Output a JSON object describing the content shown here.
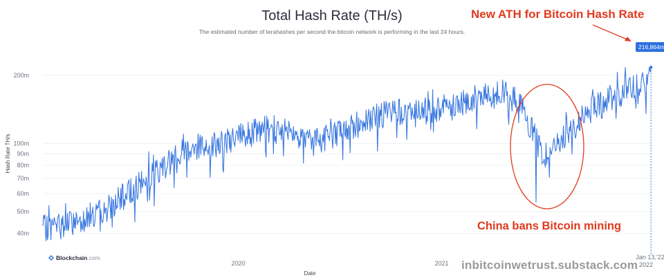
{
  "header": {
    "title": "Total Hash Rate (TH/s)",
    "subtitle": "The estimated number of terahashes per second the bitcoin network is performing in the last 24 hours."
  },
  "annotations": {
    "ath": "New ATH for Bitcoin Hash Rate",
    "china": "China bans Bitcoin mining",
    "last_value": "216,864m"
  },
  "watermark": "inbitcoinwetrust.substack.com",
  "brand": {
    "name": "Blockchain",
    "domain": ".com"
  },
  "colors": {
    "line": "#3a78e0",
    "annotation": "#e03a1e",
    "badge": "#2f6fe0"
  },
  "chart_data": {
    "type": "line",
    "title": "Total Hash Rate (TH/s)",
    "xlabel": "Date",
    "ylabel": "Hash Rate TH/s",
    "yscale": "log",
    "ylim_m": [
      33,
      245
    ],
    "xlim": [
      "2019-01-14",
      "2022-01-14"
    ],
    "y_ticks": [
      {
        "value": 40,
        "label": "40m"
      },
      {
        "value": 50,
        "label": "50m"
      },
      {
        "value": 60,
        "label": "60m"
      },
      {
        "value": 70,
        "label": "70m"
      },
      {
        "value": 80,
        "label": "80m"
      },
      {
        "value": 90,
        "label": "90m"
      },
      {
        "value": 100,
        "label": "100m"
      },
      {
        "value": 200,
        "label": "200m"
      }
    ],
    "x_ticks": [
      {
        "date": "2020-01-01",
        "label": "2020"
      },
      {
        "date": "2021-01-01",
        "label": "2021"
      },
      {
        "date": "2022-01-13",
        "label": "Jan 13, '22"
      }
    ],
    "last_point": {
      "date": "2022-01-13",
      "value": 216.864
    },
    "trend": [
      {
        "date": "2019-01-14",
        "value": 42
      },
      {
        "date": "2019-03-01",
        "value": 44
      },
      {
        "date": "2019-05-01",
        "value": 50
      },
      {
        "date": "2019-06-15",
        "value": 60
      },
      {
        "date": "2019-07-15",
        "value": 68
      },
      {
        "date": "2019-08-15",
        "value": 78
      },
      {
        "date": "2019-10-01",
        "value": 95
      },
      {
        "date": "2019-12-01",
        "value": 100
      },
      {
        "date": "2020-02-15",
        "value": 115
      },
      {
        "date": "2020-04-01",
        "value": 118
      },
      {
        "date": "2020-05-10",
        "value": 100
      },
      {
        "date": "2020-06-15",
        "value": 108
      },
      {
        "date": "2020-08-15",
        "value": 125
      },
      {
        "date": "2020-10-15",
        "value": 140
      },
      {
        "date": "2020-11-15",
        "value": 135
      },
      {
        "date": "2021-01-01",
        "value": 145
      },
      {
        "date": "2021-03-15",
        "value": 160
      },
      {
        "date": "2021-05-01",
        "value": 165
      },
      {
        "date": "2021-05-20",
        "value": 150
      },
      {
        "date": "2021-06-15",
        "value": 110
      },
      {
        "date": "2021-07-02",
        "value": 88
      },
      {
        "date": "2021-08-01",
        "value": 100
      },
      {
        "date": "2021-09-01",
        "value": 120
      },
      {
        "date": "2021-10-01",
        "value": 145
      },
      {
        "date": "2021-11-15",
        "value": 165
      },
      {
        "date": "2021-12-15",
        "value": 175
      },
      {
        "date": "2022-01-12",
        "value": 190
      }
    ],
    "notable_points": [
      {
        "date": "2021-06-20",
        "value": 55
      },
      {
        "date": "2022-01-13",
        "value": 216.864
      }
    ]
  }
}
